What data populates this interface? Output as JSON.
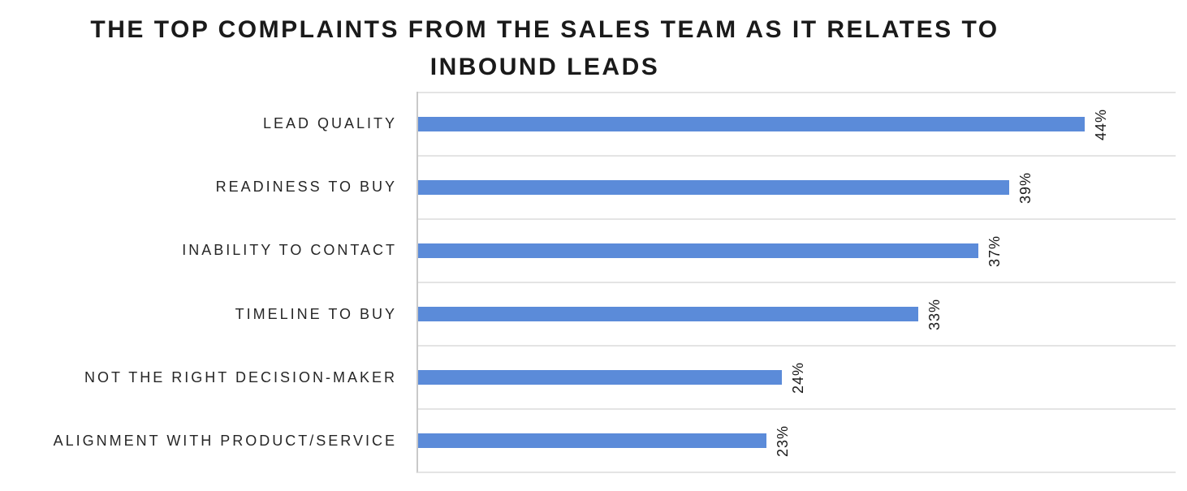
{
  "title": {
    "full": "THE TOP COMPLAINTS FROM THE SALES TEAM AS IT RELATES TO INBOUND LEADS",
    "line1": "THE TOP COMPLAINTS FROM THE SALES TEAM AS IT RELATES TO",
    "line2": "INBOUND LEADS"
  },
  "chart_data": {
    "type": "bar",
    "orientation": "horizontal",
    "title": "THE TOP COMPLAINTS FROM THE SALES TEAM AS IT RELATES TO INBOUND LEADS",
    "categories": [
      "LEAD QUALITY",
      "READINESS TO BUY",
      "INABILITY TO CONTACT",
      "TIMELINE TO BUY",
      "NOT THE RIGHT DECISION-MAKER",
      "ALIGNMENT WITH PRODUCT/SERVICE"
    ],
    "values": [
      44,
      39,
      37,
      33,
      24,
      23
    ],
    "data_labels": [
      "44%",
      "39%",
      "37%",
      "33%",
      "24%",
      "23%"
    ],
    "data_label_rotation_deg": -90,
    "xlim": [
      0,
      50
    ],
    "xlabel": "",
    "ylabel": "",
    "legend": "none",
    "grid": "horizontal category-band separator lines only; no value-axis tick labels shown",
    "colors": {
      "bar": "#5B8BD9",
      "gridline": "#E4E4E4",
      "axis_line": "#C9C9C9",
      "title_text": "#1A1A1A",
      "category_label_text": "#262626",
      "data_label_text": "#1A1A1A",
      "background": "#FFFFFF"
    }
  }
}
